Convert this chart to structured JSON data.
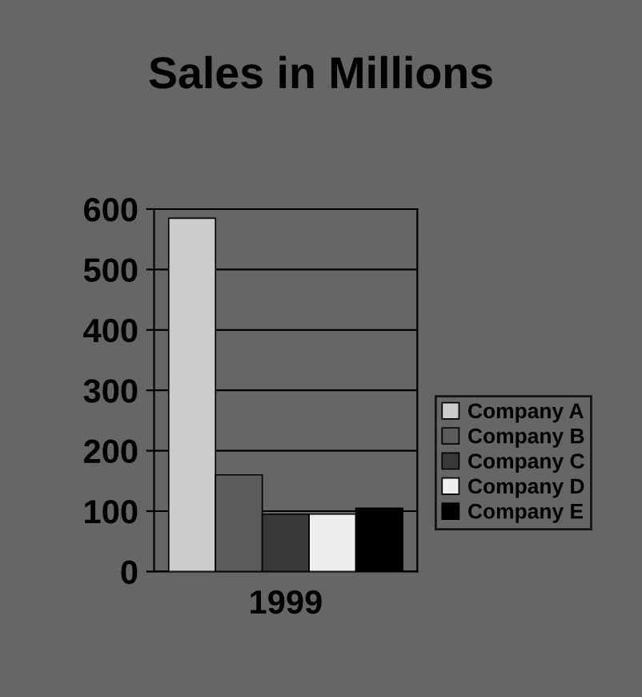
{
  "chart_data": {
    "type": "bar",
    "title": "Sales in Millions",
    "categories": [
      "1999"
    ],
    "series": [
      {
        "name": "Company A",
        "color": "#cccccc",
        "values": [
          585
        ]
      },
      {
        "name": "Company B",
        "color": "#5c5c5c",
        "values": [
          160
        ]
      },
      {
        "name": "Company C",
        "color": "#383838",
        "values": [
          95
        ]
      },
      {
        "name": "Company D",
        "color": "#eeeeee",
        "values": [
          95
        ]
      },
      {
        "name": "Company E",
        "color": "#000000",
        "values": [
          105
        ]
      }
    ],
    "ylim": [
      0,
      600
    ],
    "yticks": [
      0,
      100,
      200,
      300,
      400,
      500,
      600
    ],
    "grid": "y",
    "legend": "right"
  }
}
